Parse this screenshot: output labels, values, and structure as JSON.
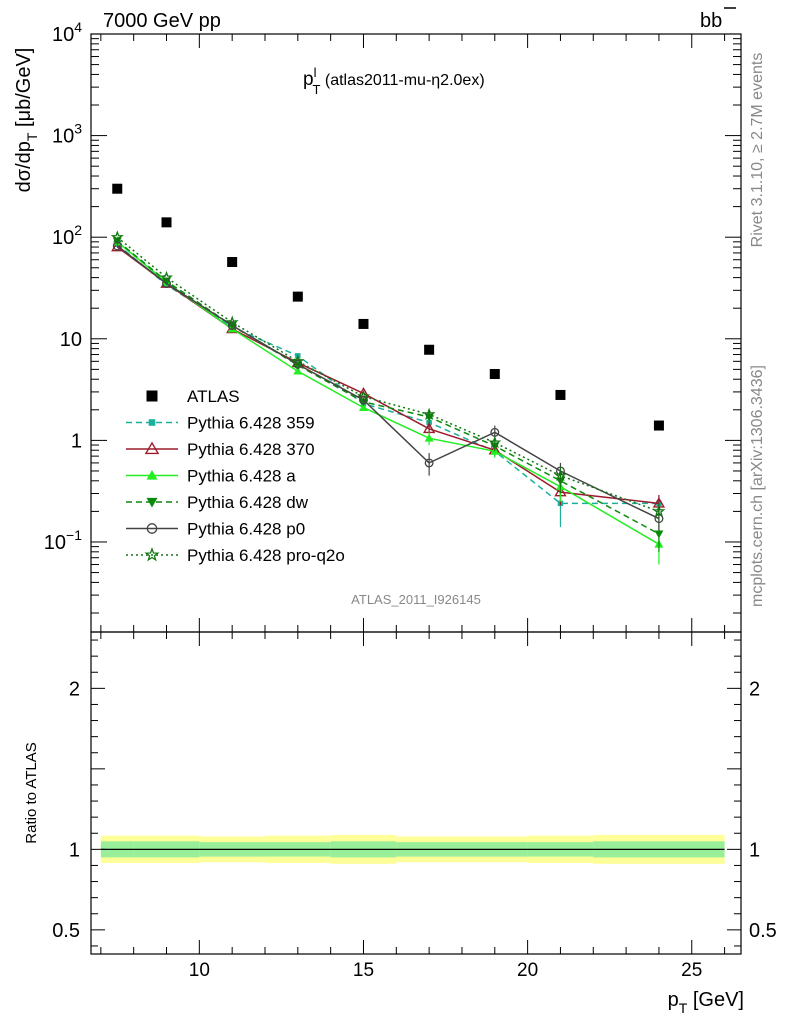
{
  "header": {
    "energy_label": "7000 GeV pp",
    "process_b": "b",
    "process_bbar": "b"
  },
  "side": {
    "rivet_label": "Rivet 3.1.10, ≥ 2.7M events",
    "mcplots_label": "mcplots.cern.ch [arXiv:1306.3436]"
  },
  "chart_data": [
    {
      "type": "scatter",
      "title_main": "p",
      "title_sup": "l",
      "title_sub": "T",
      "title_rest": " (atlas2011-mu-η2.0ex)",
      "analysis_id": "ATLAS_2011_I926145",
      "ylabel_pre": "dσ/dp",
      "ylabel_sub": "T",
      "ylabel_post": " [μb/GeV]",
      "yscale": "log",
      "ylim": [
        0.013,
        10000
      ],
      "xlim": [
        6.7,
        26.5
      ],
      "y_ticks": [
        {
          "value": 10000,
          "base": "10",
          "exp": "4"
        },
        {
          "value": 1000,
          "base": "10",
          "exp": "3"
        },
        {
          "value": 100,
          "base": "10",
          "exp": "2"
        },
        {
          "value": 10,
          "base": "10",
          "exp": ""
        },
        {
          "value": 1,
          "base": "1",
          "exp": ""
        },
        {
          "value": 0.1,
          "base": "10",
          "exp": "−1"
        }
      ],
      "legend_position": "middle-left",
      "x": [
        7.5,
        9,
        11,
        13,
        15,
        17,
        19,
        21,
        24
      ],
      "series": [
        {
          "name": "ATLAS",
          "color": "#000000",
          "marker": "square",
          "line": "none",
          "values": [
            300,
            140,
            57,
            26,
            14,
            7.8,
            4.5,
            2.8,
            1.4
          ],
          "errors": [
            0,
            0,
            0,
            0,
            0,
            0,
            0,
            0,
            0
          ]
        },
        {
          "name": "Pythia 6.428 359",
          "color": "#1bb09c",
          "marker": "square-small",
          "line": "dashed",
          "values": [
            85,
            34,
            13,
            6.8,
            2.3,
            1.5,
            0.78,
            0.24,
            0.24
          ],
          "errors": [
            0,
            0,
            0,
            0,
            0,
            0.15,
            0.1,
            0.1,
            0.05
          ]
        },
        {
          "name": "Pythia 6.428 370",
          "color": "#9b1c2c",
          "marker": "triangle-open",
          "line": "solid",
          "values": [
            80,
            35,
            12.5,
            5.8,
            2.9,
            1.3,
            0.8,
            0.31,
            0.24
          ],
          "errors": [
            0,
            0,
            0,
            0,
            0,
            0.2,
            0.1,
            0.08,
            0.05
          ]
        },
        {
          "name": "Pythia 6.428 a",
          "color": "#22ee22",
          "marker": "triangle-filled",
          "line": "solid",
          "values": [
            90,
            36,
            12.5,
            4.8,
            2.1,
            1.05,
            0.78,
            0.35,
            0.095
          ],
          "errors": [
            0,
            0,
            0,
            0,
            0,
            0.15,
            0.1,
            0.1,
            0.035
          ]
        },
        {
          "name": "Pythia 6.428 dw",
          "color": "#0a8a0a",
          "marker": "triangle-down",
          "line": "dashed",
          "values": [
            92,
            37,
            13.5,
            5.5,
            2.4,
            1.7,
            0.88,
            0.4,
            0.12
          ],
          "errors": [
            0,
            0,
            0,
            0,
            0,
            0.2,
            0.1,
            0.1,
            0.04
          ]
        },
        {
          "name": "Pythia 6.428 p0",
          "color": "#444444",
          "marker": "circle-open",
          "line": "solid",
          "values": [
            82,
            35,
            13.5,
            5.6,
            2.5,
            0.6,
            1.2,
            0.5,
            0.17
          ],
          "errors": [
            0,
            0,
            0,
            0,
            0,
            0.15,
            0.2,
            0.1,
            0.04
          ]
        },
        {
          "name": "Pythia 6.428 pro-q2o",
          "color": "#117711",
          "marker": "star",
          "line": "dotted",
          "values": [
            100,
            40,
            14.5,
            6.0,
            2.7,
            1.8,
            0.95,
            0.45,
            0.2
          ],
          "errors": [
            0,
            0,
            0,
            0,
            0,
            0.15,
            0.1,
            0.1,
            0.04
          ]
        }
      ]
    },
    {
      "type": "line",
      "ylabel": "Ratio to ATLAS",
      "ylim": [
        0.35,
        2.35
      ],
      "xlim": [
        6.7,
        26.5
      ],
      "y_tick_labels": [
        {
          "value": 0.5,
          "label": "0.5"
        },
        {
          "value": 1,
          "label": "1"
        },
        {
          "value": 2,
          "label": "2"
        }
      ],
      "x_tick_labels": [
        {
          "value": 10,
          "label": "10"
        },
        {
          "value": 15,
          "label": "15"
        },
        {
          "value": 20,
          "label": "20"
        },
        {
          "value": 25,
          "label": "25"
        }
      ],
      "xlabel_main": "p",
      "xlabel_sub": "T",
      "xlabel_unit": " [GeV]",
      "reference": 1,
      "band_colors": {
        "outer": "#ffff99",
        "inner": "#99ee99"
      },
      "bins": [
        {
          "x_lo": 7,
          "x_hi": 8,
          "inner": [
            0.95,
            1.05
          ],
          "outer": [
            0.915,
            1.085
          ]
        },
        {
          "x_lo": 8,
          "x_hi": 10,
          "inner": [
            0.95,
            1.05
          ],
          "outer": [
            0.915,
            1.085
          ]
        },
        {
          "x_lo": 10,
          "x_hi": 12,
          "inner": [
            0.955,
            1.045
          ],
          "outer": [
            0.92,
            1.08
          ]
        },
        {
          "x_lo": 12,
          "x_hi": 14,
          "inner": [
            0.955,
            1.045
          ],
          "outer": [
            0.915,
            1.085
          ]
        },
        {
          "x_lo": 14,
          "x_hi": 16,
          "inner": [
            0.95,
            1.05
          ],
          "outer": [
            0.91,
            1.09
          ]
        },
        {
          "x_lo": 16,
          "x_hi": 18,
          "inner": [
            0.955,
            1.045
          ],
          "outer": [
            0.92,
            1.08
          ]
        },
        {
          "x_lo": 18,
          "x_hi": 20,
          "inner": [
            0.955,
            1.045
          ],
          "outer": [
            0.92,
            1.08
          ]
        },
        {
          "x_lo": 20,
          "x_hi": 22,
          "inner": [
            0.955,
            1.045
          ],
          "outer": [
            0.915,
            1.085
          ]
        },
        {
          "x_lo": 22,
          "x_hi": 26,
          "inner": [
            0.95,
            1.05
          ],
          "outer": [
            0.91,
            1.09
          ]
        }
      ]
    }
  ]
}
